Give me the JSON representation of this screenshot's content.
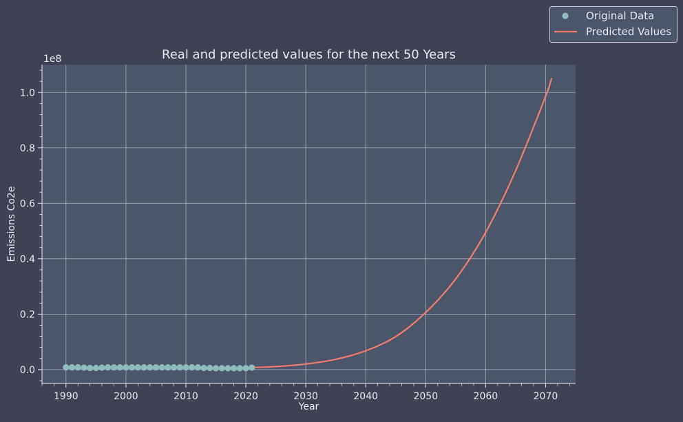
{
  "chart_data": {
    "type": "line",
    "title": "Real and predicted values for the next 50 Years",
    "xlabel": "Year",
    "ylabel": "Emissions Co2e",
    "y_offset_text": "1e8",
    "xlim": [
      1986,
      2075
    ],
    "ylim": [
      -0.05,
      1.1
    ],
    "x_ticks": [
      1990,
      2000,
      2010,
      2020,
      2030,
      2040,
      2050,
      2060,
      2070
    ],
    "y_ticks": [
      0.0,
      0.2,
      0.4,
      0.6,
      0.8,
      1.0
    ],
    "y_tick_labels": [
      "0.0",
      "0.2",
      "0.4",
      "0.6",
      "0.8",
      "1.0"
    ],
    "grid": true,
    "legend_position": "top-right, outside plot",
    "series": [
      {
        "name": "Original Data",
        "kind": "scatter",
        "color": "#8fbcbb",
        "x": [
          1990,
          1991,
          1992,
          1993,
          1994,
          1995,
          1996,
          1997,
          1998,
          1999,
          2000,
          2001,
          2002,
          2003,
          2004,
          2005,
          2006,
          2007,
          2008,
          2009,
          2010,
          2011,
          2012,
          2013,
          2014,
          2015,
          2016,
          2017,
          2018,
          2019,
          2020,
          2021
        ],
        "y": [
          0.008,
          0.008,
          0.008,
          0.007,
          0.006,
          0.006,
          0.007,
          0.008,
          0.008,
          0.008,
          0.008,
          0.008,
          0.008,
          0.008,
          0.008,
          0.008,
          0.008,
          0.008,
          0.008,
          0.008,
          0.008,
          0.008,
          0.008,
          0.006,
          0.006,
          0.005,
          0.005,
          0.005,
          0.005,
          0.005,
          0.005,
          0.007
        ]
      },
      {
        "name": "Predicted Values",
        "kind": "line",
        "color": "#f27d6e",
        "x": [
          1990,
          1995,
          2000,
          2005,
          2010,
          2015,
          2020,
          2025,
          2030,
          2035,
          2040,
          2045,
          2050,
          2055,
          2060,
          2065,
          2070,
          2071
        ],
        "y": [
          0.006,
          0.006,
          0.006,
          0.006,
          0.006,
          0.006,
          0.007,
          0.011,
          0.02,
          0.037,
          0.068,
          0.119,
          0.206,
          0.327,
          0.495,
          0.718,
          0.986,
          1.052
        ]
      }
    ]
  }
}
